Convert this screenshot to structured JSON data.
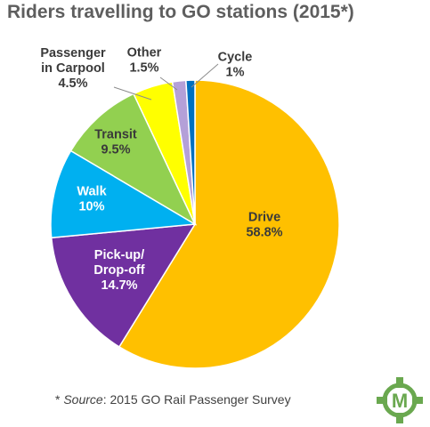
{
  "chart_data": {
    "type": "pie",
    "title": "Riders travelling to GO stations (2015*)",
    "slices": [
      {
        "label": [
          "Drive"
        ],
        "value_text": "58.8%",
        "value": 58.8,
        "color": "#ffc000",
        "label_color": "#3a3a3a"
      },
      {
        "label": [
          "Pick-up/",
          "Drop-off"
        ],
        "value_text": "14.7%",
        "value": 14.7,
        "color": "#7030a0",
        "label_color": "#ffffff"
      },
      {
        "label": [
          "Walk"
        ],
        "value_text": "10%",
        "value": 10,
        "color": "#00b0f0",
        "label_color": "#ffffff"
      },
      {
        "label": [
          "Transit"
        ],
        "value_text": "9.5%",
        "value": 9.5,
        "color": "#92d050",
        "label_color": "#3a3a3a"
      },
      {
        "label": [
          "Passenger",
          "in Carpool"
        ],
        "value_text": "4.5%",
        "value": 4.5,
        "color": "#ffff00",
        "label_color": "#3a3a3a"
      },
      {
        "label": [
          "Other"
        ],
        "value_text": "1.5%",
        "value": 1.5,
        "color": "#b4a0d8",
        "label_color": "#3a3a3a"
      },
      {
        "label": [
          "Cycle"
        ],
        "value_text": "1%",
        "value": 1,
        "color": "#0070c0",
        "label_color": "#3a3a3a"
      }
    ]
  },
  "footnote": {
    "prefix": "* ",
    "source_word": "Source",
    "rest": ": 2015 GO Rail Passenger Survey"
  },
  "logo": {
    "icon": "metrolinx-m-logo",
    "letter": "M",
    "color": "#6aa84f"
  }
}
